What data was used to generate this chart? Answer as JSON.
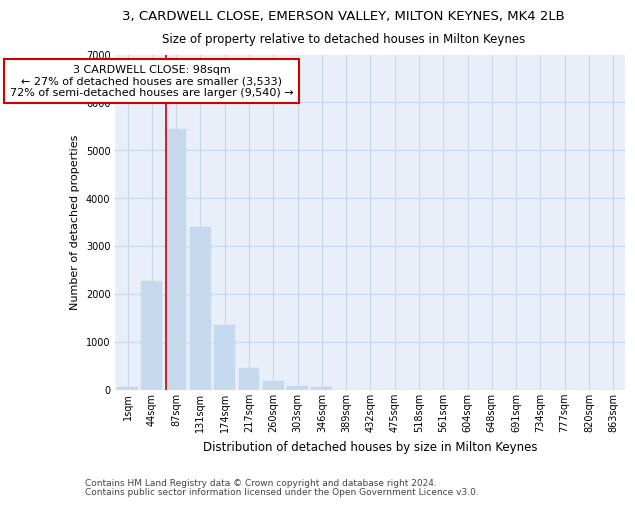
{
  "title1": "3, CARDWELL CLOSE, EMERSON VALLEY, MILTON KEYNES, MK4 2LB",
  "title2": "Size of property relative to detached houses in Milton Keynes",
  "xlabel": "Distribution of detached houses by size in Milton Keynes",
  "ylabel": "Number of detached properties",
  "footnote1": "Contains HM Land Registry data © Crown copyright and database right 2024.",
  "footnote2": "Contains public sector information licensed under the Open Government Licence v3.0.",
  "bar_labels": [
    "1sqm",
    "44sqm",
    "87sqm",
    "131sqm",
    "174sqm",
    "217sqm",
    "260sqm",
    "303sqm",
    "346sqm",
    "389sqm",
    "432sqm",
    "475sqm",
    "518sqm",
    "561sqm",
    "604sqm",
    "648sqm",
    "691sqm",
    "734sqm",
    "777sqm",
    "820sqm",
    "863sqm"
  ],
  "bar_values": [
    55,
    2270,
    5450,
    3400,
    1350,
    450,
    175,
    80,
    50,
    0,
    0,
    0,
    0,
    0,
    0,
    0,
    0,
    0,
    0,
    0,
    0
  ],
  "bar_color": "#c5d8ed",
  "bar_edgecolor": "#c5d8ed",
  "grid_color": "#c8d8ea",
  "background_color": "#e8eff8",
  "vline_color": "#cc0000",
  "annotation_text": "3 CARDWELL CLOSE: 98sqm\n← 27% of detached houses are smaller (3,533)\n72% of semi-detached houses are larger (9,540) →",
  "annotation_box_color": "white",
  "annotation_box_edgecolor": "#cc0000",
  "ylim": [
    0,
    7000
  ],
  "yticks": [
    0,
    1000,
    2000,
    3000,
    4000,
    5000,
    6000,
    7000
  ],
  "title1_fontsize": 9.5,
  "title2_fontsize": 8.5,
  "xlabel_fontsize": 8.5,
  "ylabel_fontsize": 8,
  "tick_fontsize": 7,
  "annot_fontsize": 8,
  "footnote_fontsize": 6.5
}
